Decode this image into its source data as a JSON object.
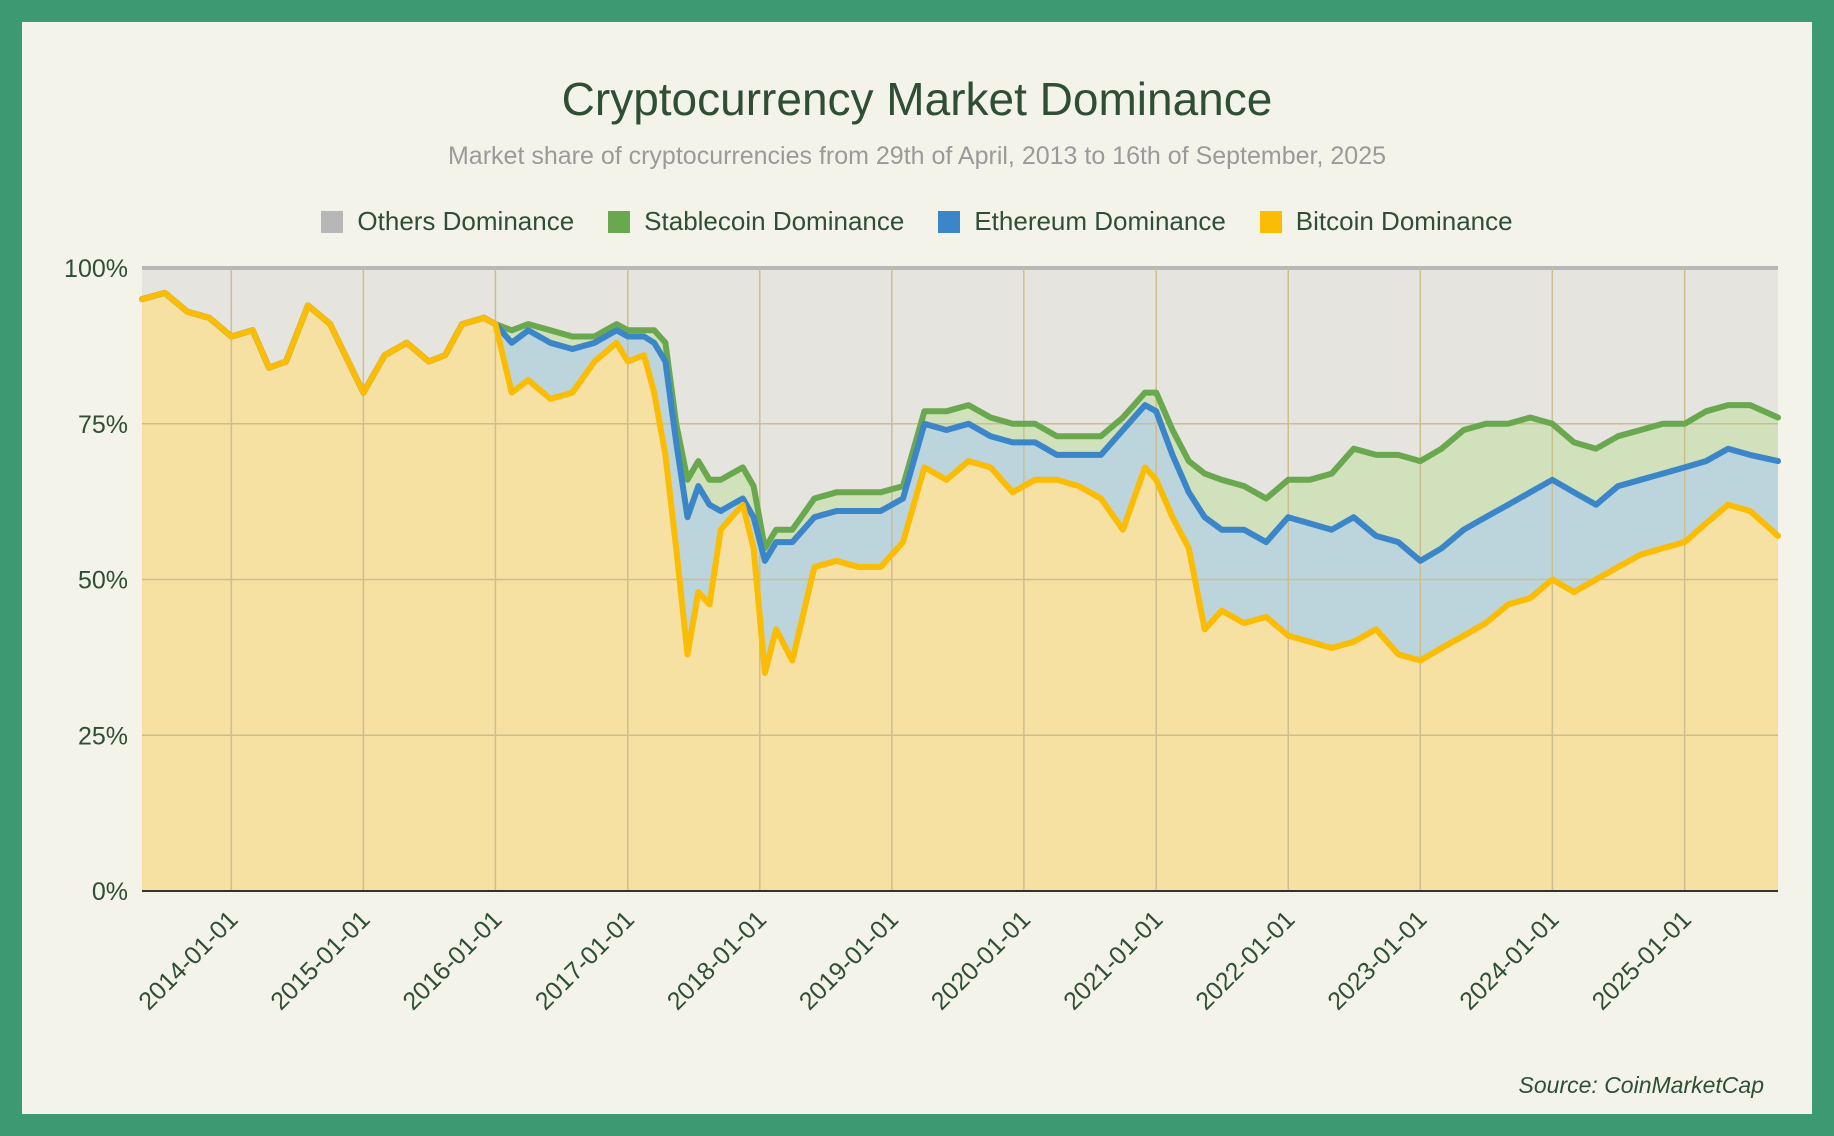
{
  "chart_data": {
    "type": "area",
    "title": "Cryptocurrency Market Dominance",
    "subtitle": "Market share of cryptocurrencies from 29th of April, 2013 to 16th of September, 2025",
    "source": "Source: CoinMarketCap",
    "legend_placement": "top-center",
    "stacked": true,
    "grid": true,
    "ylim": [
      0,
      100
    ],
    "xlim": [
      "2013-04-29",
      "2025-09-16"
    ],
    "yticks": [
      "0%",
      "25%",
      "50%",
      "75%",
      "100%"
    ],
    "xticks": [
      "2014-01-01",
      "2015-01-01",
      "2016-01-01",
      "2017-01-01",
      "2018-01-01",
      "2019-01-01",
      "2020-01-01",
      "2021-01-01",
      "2022-01-01",
      "2023-01-01",
      "2024-01-01",
      "2025-01-01"
    ],
    "x": [
      "2013-04-29",
      "2013-07-01",
      "2013-09-01",
      "2013-11-01",
      "2014-01-01",
      "2014-03-01",
      "2014-04-15",
      "2014-06-01",
      "2014-08-01",
      "2014-10-01",
      "2015-01-01",
      "2015-03-01",
      "2015-05-01",
      "2015-07-01",
      "2015-08-15",
      "2015-10-01",
      "2015-12-01",
      "2016-01-01",
      "2016-02-15",
      "2016-04-01",
      "2016-06-01",
      "2016-08-01",
      "2016-10-01",
      "2016-12-01",
      "2017-01-01",
      "2017-02-15",
      "2017-03-15",
      "2017-04-15",
      "2017-05-15",
      "2017-06-15",
      "2017-07-15",
      "2017-08-15",
      "2017-09-15",
      "2017-10-15",
      "2017-11-15",
      "2017-12-15",
      "2018-01-15",
      "2018-02-15",
      "2018-04-01",
      "2018-06-01",
      "2018-08-01",
      "2018-10-01",
      "2018-12-01",
      "2019-02-01",
      "2019-04-01",
      "2019-06-01",
      "2019-08-01",
      "2019-10-01",
      "2019-12-01",
      "2020-02-01",
      "2020-04-01",
      "2020-06-01",
      "2020-08-01",
      "2020-10-01",
      "2020-12-01",
      "2021-01-01",
      "2021-02-15",
      "2021-04-01",
      "2021-05-15",
      "2021-07-01",
      "2021-09-01",
      "2021-11-01",
      "2022-01-01",
      "2022-03-01",
      "2022-05-01",
      "2022-07-01",
      "2022-09-01",
      "2022-11-01",
      "2023-01-01",
      "2023-03-01",
      "2023-05-01",
      "2023-07-01",
      "2023-09-01",
      "2023-11-01",
      "2024-01-01",
      "2024-03-01",
      "2024-05-01",
      "2024-07-01",
      "2024-09-01",
      "2024-11-01",
      "2025-01-01",
      "2025-03-01",
      "2025-05-01",
      "2025-07-01",
      "2025-09-16"
    ],
    "series": [
      {
        "name": "Bitcoin Dominance",
        "color": "#fbbc05",
        "fill": "#f6e0a2",
        "values": [
          95,
          96,
          93,
          92,
          89,
          90,
          84,
          85,
          94,
          91,
          80,
          86,
          88,
          85,
          86,
          91,
          92,
          91,
          80,
          82,
          79,
          80,
          85,
          88,
          85,
          86,
          80,
          70,
          55,
          38,
          48,
          46,
          58,
          60,
          62,
          55,
          35,
          42,
          37,
          52,
          53,
          52,
          52,
          56,
          68,
          66,
          69,
          68,
          64,
          66,
          66,
          65,
          63,
          58,
          68,
          66,
          60,
          55,
          42,
          45,
          43,
          44,
          41,
          40,
          39,
          40,
          42,
          38,
          37,
          39,
          41,
          43,
          46,
          47,
          50,
          48,
          50,
          52,
          54,
          55,
          56,
          59,
          62,
          61,
          57
        ]
      },
      {
        "name": "Ethereum Dominance",
        "color": "#3b85c9",
        "fill": "#bcd5dd",
        "values": [
          95,
          96,
          93,
          92,
          89,
          90,
          84,
          85,
          94,
          91,
          80,
          86,
          88,
          85,
          86,
          91,
          92,
          91,
          88,
          90,
          88,
          87,
          88,
          90,
          89,
          89,
          88,
          85,
          72,
          60,
          65,
          62,
          61,
          62,
          63,
          60,
          53,
          56,
          56,
          60,
          61,
          61,
          61,
          63,
          75,
          74,
          75,
          73,
          72,
          72,
          70,
          70,
          70,
          74,
          78,
          77,
          70,
          64,
          60,
          58,
          58,
          56,
          60,
          59,
          58,
          60,
          57,
          56,
          53,
          55,
          58,
          60,
          62,
          64,
          66,
          64,
          62,
          65,
          66,
          67,
          68,
          69,
          71,
          70,
          69
        ]
      },
      {
        "name": "Stablecoin Dominance",
        "color": "#6aa84f",
        "fill": "#d1e1bc",
        "values": [
          95,
          96,
          93,
          92,
          89,
          90,
          84,
          85,
          94,
          91,
          80,
          86,
          88,
          85,
          86,
          91,
          92,
          91,
          90,
          91,
          90,
          89,
          89,
          91,
          90,
          90,
          90,
          88,
          75,
          66,
          69,
          66,
          66,
          67,
          68,
          65,
          55,
          58,
          58,
          63,
          64,
          64,
          64,
          65,
          77,
          77,
          78,
          76,
          75,
          75,
          73,
          73,
          73,
          76,
          80,
          80,
          74,
          69,
          67,
          66,
          65,
          63,
          66,
          66,
          67,
          71,
          70,
          70,
          69,
          71,
          74,
          75,
          75,
          76,
          75,
          72,
          71,
          73,
          74,
          75,
          75,
          77,
          78,
          78,
          76
        ]
      },
      {
        "name": "Others Dominance",
        "color": "#b7b7b7",
        "fill": "#e5e4de",
        "values": [
          100,
          100,
          100,
          100,
          100,
          100,
          100,
          100,
          100,
          100,
          100,
          100,
          100,
          100,
          100,
          100,
          100,
          100,
          100,
          100,
          100,
          100,
          100,
          100,
          100,
          100,
          100,
          100,
          100,
          100,
          100,
          100,
          100,
          100,
          100,
          100,
          100,
          100,
          100,
          100,
          100,
          100,
          100,
          100,
          100,
          100,
          100,
          100,
          100,
          100,
          100,
          100,
          100,
          100,
          100,
          100,
          100,
          100,
          100,
          100,
          100,
          100,
          100,
          100,
          100,
          100,
          100,
          100,
          100,
          100,
          100,
          100,
          100,
          100,
          100,
          100,
          100,
          100,
          100,
          100,
          100,
          100,
          100,
          100,
          100
        ]
      }
    ]
  }
}
